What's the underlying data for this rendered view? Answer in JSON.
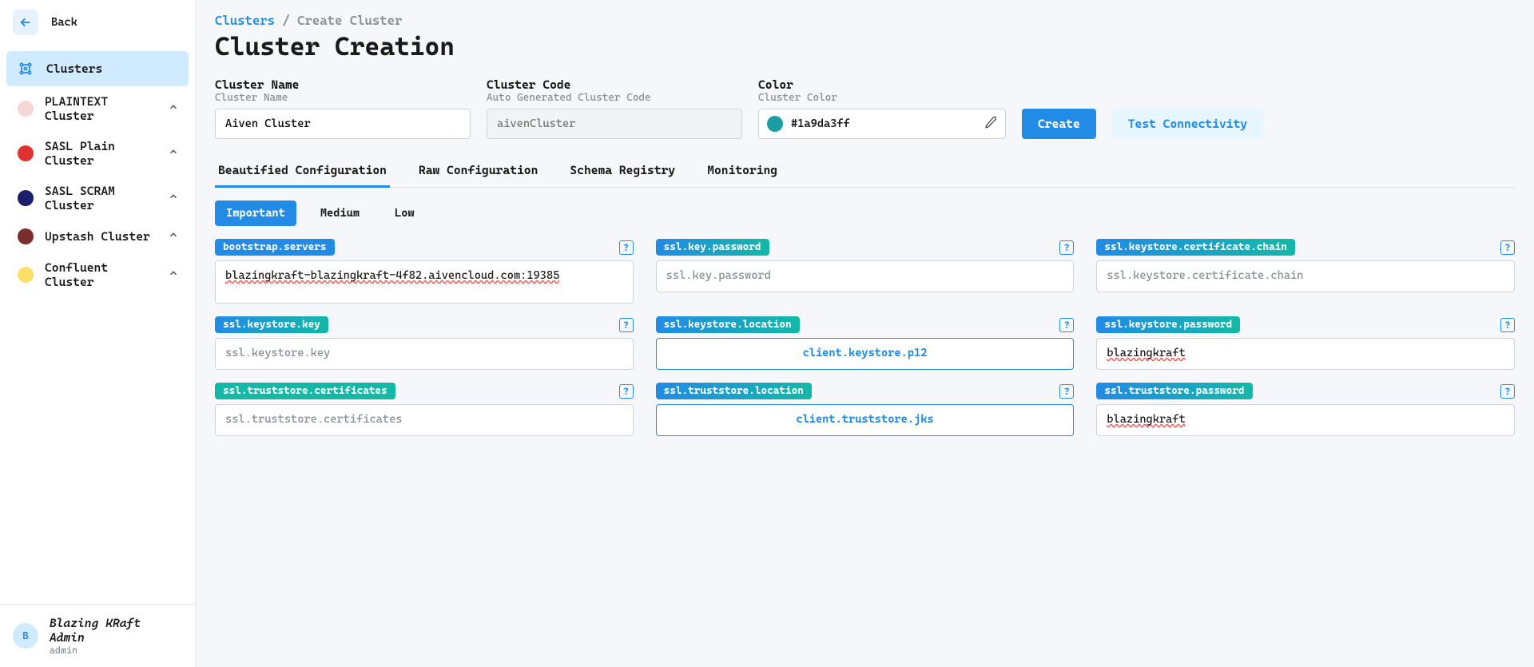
{
  "sidebar": {
    "back_label": "Back",
    "items": [
      {
        "label": "Clusters",
        "type": "root"
      },
      {
        "label": "PLAINTEXT Cluster",
        "color": "#f6d7d7"
      },
      {
        "label": "SASL Plain Cluster",
        "color": "#e03131"
      },
      {
        "label": "SASL SCRAM Cluster",
        "color": "#1b1f6b"
      },
      {
        "label": "Upstash Cluster",
        "color": "#7a2e2e"
      },
      {
        "label": "Confluent Cluster",
        "color": "#ffe066"
      }
    ],
    "user": {
      "name": "Blazing KRaft Admin",
      "role": "admin",
      "initial": "B"
    }
  },
  "breadcrumb": {
    "root": "Clusters",
    "current": "Create Cluster"
  },
  "page_title": "Cluster Creation",
  "form": {
    "name": {
      "label": "Cluster Name",
      "sub": "Cluster Name",
      "value": "Aiven Cluster"
    },
    "code": {
      "label": "Cluster Code",
      "sub": "Auto Generated Cluster Code",
      "placeholder": "aivenCluster"
    },
    "color": {
      "label": "Color",
      "sub": "Cluster Color",
      "value": "#1a9da3ff",
      "swatch": "#1a9da3"
    },
    "create_label": "Create",
    "test_label": "Test Connectivity"
  },
  "tabs": [
    "Beautified Configuration",
    "Raw Configuration",
    "Schema Registry",
    "Monitoring"
  ],
  "priority": [
    "Important",
    "Medium",
    "Low"
  ],
  "label_colors": {
    "primary": "#228be6",
    "teal": "#0ea5a7",
    "teal_grad_a": "#228be6",
    "teal_grad_b": "#14b8a6"
  },
  "config": [
    {
      "key": "bootstrap.servers",
      "label_color": "#228be6",
      "value": "blazingkraft-blazingkraft-4f82.aivencloud.com:19385",
      "multiline": true,
      "spellerr": true
    },
    {
      "key": "ssl.key.password",
      "label_gradient": true,
      "placeholder": "ssl.key.password"
    },
    {
      "key": "ssl.keystore.certificate.chain",
      "label_gradient": true,
      "placeholder": "ssl.keystore.certificate.chain"
    },
    {
      "key": "ssl.keystore.key",
      "label_gradient": true,
      "placeholder": "ssl.keystore.key"
    },
    {
      "key": "ssl.keystore.location",
      "label_gradient": true,
      "file": "client.keystore.p12"
    },
    {
      "key": "ssl.keystore.password",
      "label_gradient": true,
      "value": "blazingkraft",
      "spellerr": true
    },
    {
      "key": "ssl.truststore.certificates",
      "label_color": "#14b8a6",
      "placeholder": "ssl.truststore.certificates"
    },
    {
      "key": "ssl.truststore.location",
      "label_gradient": true,
      "file": "client.truststore.jks"
    },
    {
      "key": "ssl.truststore.password",
      "label_gradient": true,
      "value": "blazingkraft",
      "spellerr": true
    }
  ]
}
